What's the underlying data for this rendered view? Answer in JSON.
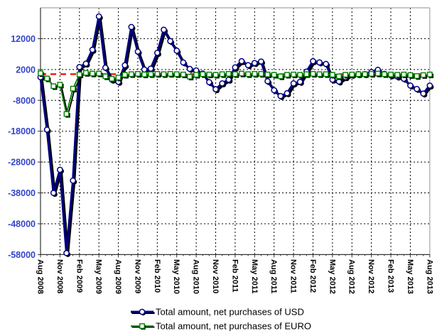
{
  "chart_data": {
    "type": "line",
    "title": "",
    "x_tick_labels": [
      "Aug 2008",
      "Nov 2008",
      "Feb 2009",
      "May 2009",
      "Aug 2009",
      "Nov 2009",
      "Feb 2010",
      "May 2010",
      "Aug 2010",
      "Nov 2010",
      "Feb 2011",
      "May 2011",
      "Aug 2011",
      "Nov 2011",
      "Feb 2012",
      "May 2012",
      "Aug 2012",
      "Nov 2012",
      "Feb 2013",
      "May 2013",
      "Aug 2013"
    ],
    "x_months_between_ticks": 3,
    "n_points": 61,
    "y_ticks": [
      12000,
      2000,
      -8000,
      -18000,
      -28000,
      -38000,
      -48000,
      -58000
    ],
    "ylim": [
      -58000,
      22000
    ],
    "grid": true,
    "legend_position": "bottom",
    "reference_line": {
      "value": 500,
      "color": "#FF0000",
      "style": "dashed"
    },
    "series": [
      {
        "name": "Total amount, net purchases of USD",
        "color": "#000080",
        "marker": "circle",
        "values": [
          -500,
          -17500,
          -38000,
          -30500,
          -57500,
          -34000,
          2800,
          3900,
          8400,
          19200,
          2600,
          -1300,
          -2000,
          3400,
          15800,
          7800,
          2000,
          2300,
          7400,
          14900,
          11200,
          8100,
          4300,
          2200,
          1700,
          700,
          -2100,
          -4400,
          -2500,
          -1300,
          2700,
          4700,
          3400,
          4100,
          4600,
          -1800,
          -4700,
          -6600,
          -5700,
          -2500,
          -2000,
          1300,
          4700,
          4300,
          3800,
          -1300,
          -1900,
          -500,
          300,
          500,
          500,
          1200,
          1900,
          600,
          100,
          -300,
          -1000,
          -3200,
          -4300,
          -5800,
          -3200
        ]
      },
      {
        "name": "Total amount, net purchases of EURO",
        "color": "#008000",
        "marker": "square",
        "values": [
          800,
          -900,
          -3400,
          -2900,
          -12400,
          -4200,
          400,
          900,
          700,
          700,
          -200,
          -1000,
          -600,
          300,
          500,
          600,
          400,
          500,
          600,
          500,
          600,
          500,
          400,
          -300,
          300,
          500,
          400,
          300,
          500,
          600,
          500,
          700,
          500,
          600,
          600,
          400,
          300,
          -200,
          300,
          400,
          300,
          500,
          600,
          500,
          500,
          300,
          -200,
          300,
          400,
          500,
          500,
          600,
          700,
          500,
          400,
          300,
          400,
          200,
          -100,
          200,
          400
        ]
      }
    ]
  },
  "colors": {
    "background": "#FFFFFF",
    "y_tick_label": "#3344CC",
    "x_tick_label": "#000000",
    "grid": "#000000",
    "axis": "#333333",
    "frame": "#A6A6A6",
    "shadow": "#000000",
    "legend_text": "#000000"
  }
}
